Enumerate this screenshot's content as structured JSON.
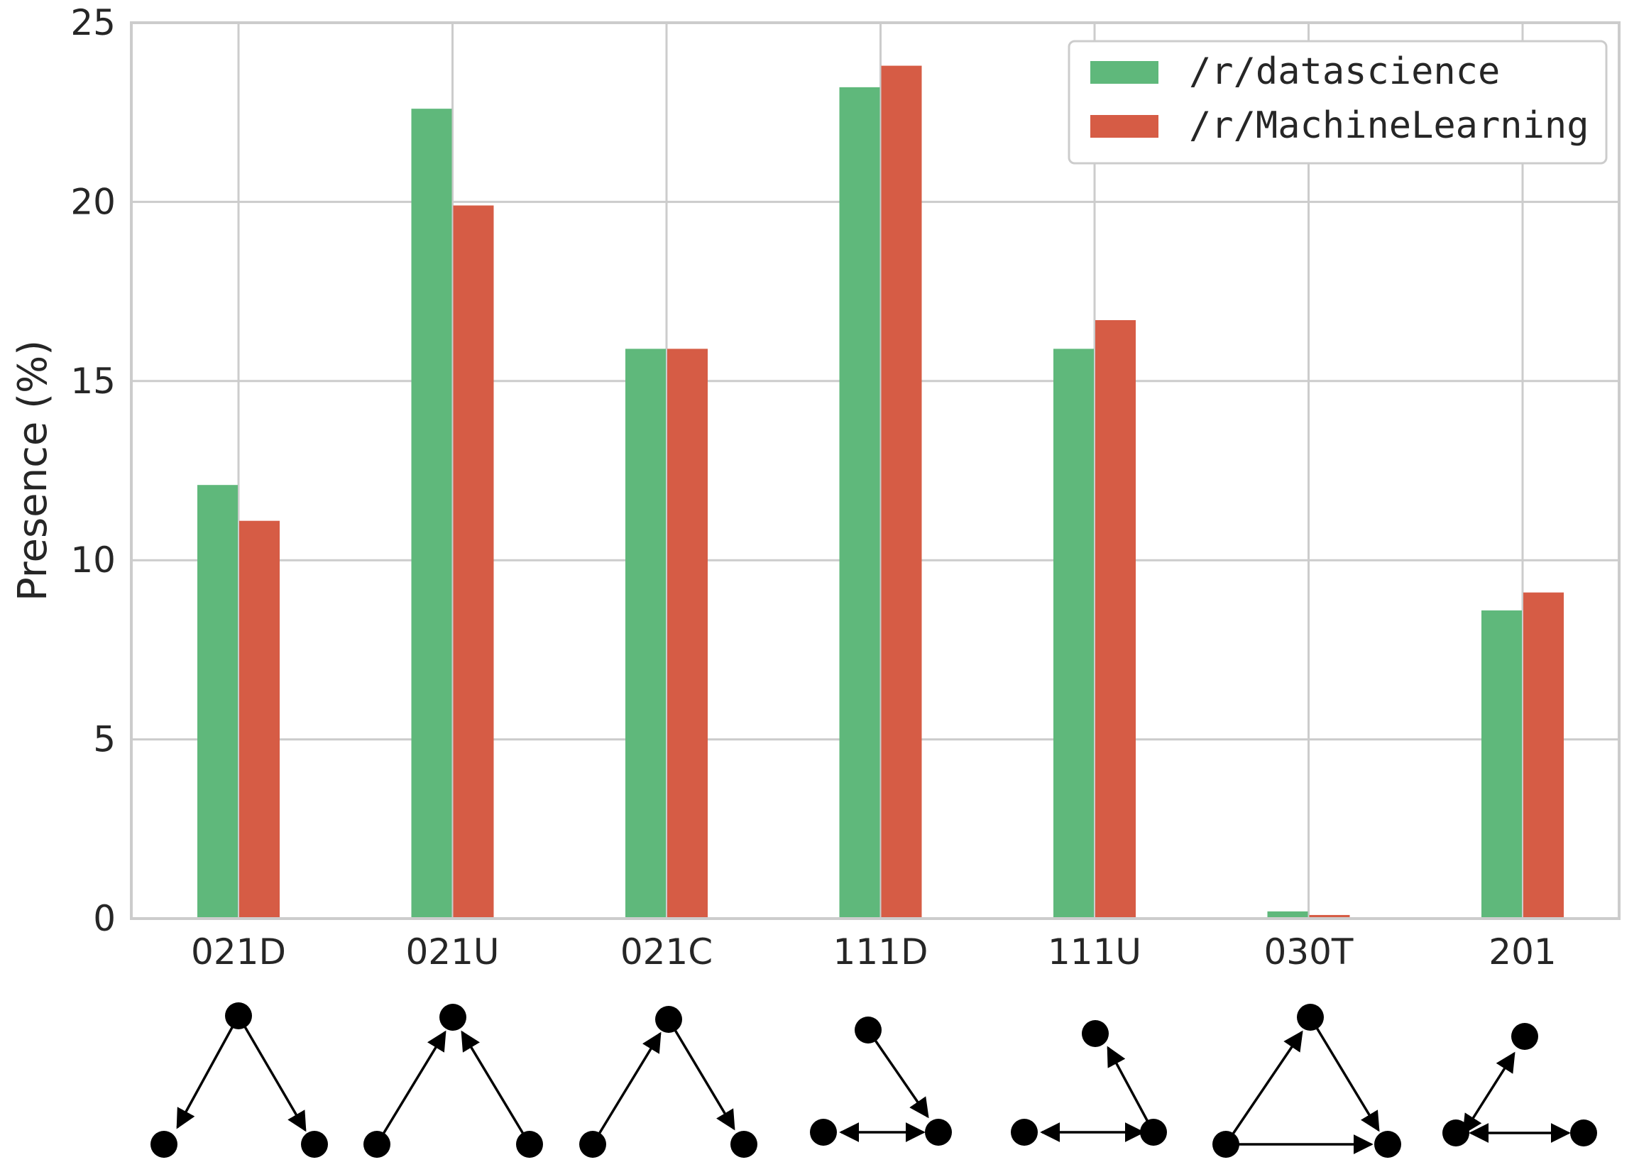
{
  "colors": {
    "datascience": "#5fb87b",
    "machinelearning": "#d65c45"
  },
  "legend": {
    "datascience": "/r/datascience",
    "machinelearning": "/r/MachineLearning"
  },
  "chart_data": {
    "type": "bar",
    "ylabel": "Presence (%)",
    "ylim": [
      0,
      25
    ],
    "yticks": [
      0,
      5,
      10,
      15,
      20,
      25
    ],
    "grid": true,
    "legend_position": "top-right",
    "categories": [
      "021D",
      "021U",
      "021C",
      "111D",
      "111U",
      "030T",
      "201"
    ],
    "series": [
      {
        "name": "/r/datascience",
        "values": [
          12.1,
          22.6,
          15.9,
          23.2,
          15.9,
          0.2,
          8.6
        ]
      },
      {
        "name": "/r/MachineLearning",
        "values": [
          11.1,
          19.9,
          15.9,
          23.8,
          16.7,
          0.1,
          9.1
        ]
      }
    ]
  }
}
